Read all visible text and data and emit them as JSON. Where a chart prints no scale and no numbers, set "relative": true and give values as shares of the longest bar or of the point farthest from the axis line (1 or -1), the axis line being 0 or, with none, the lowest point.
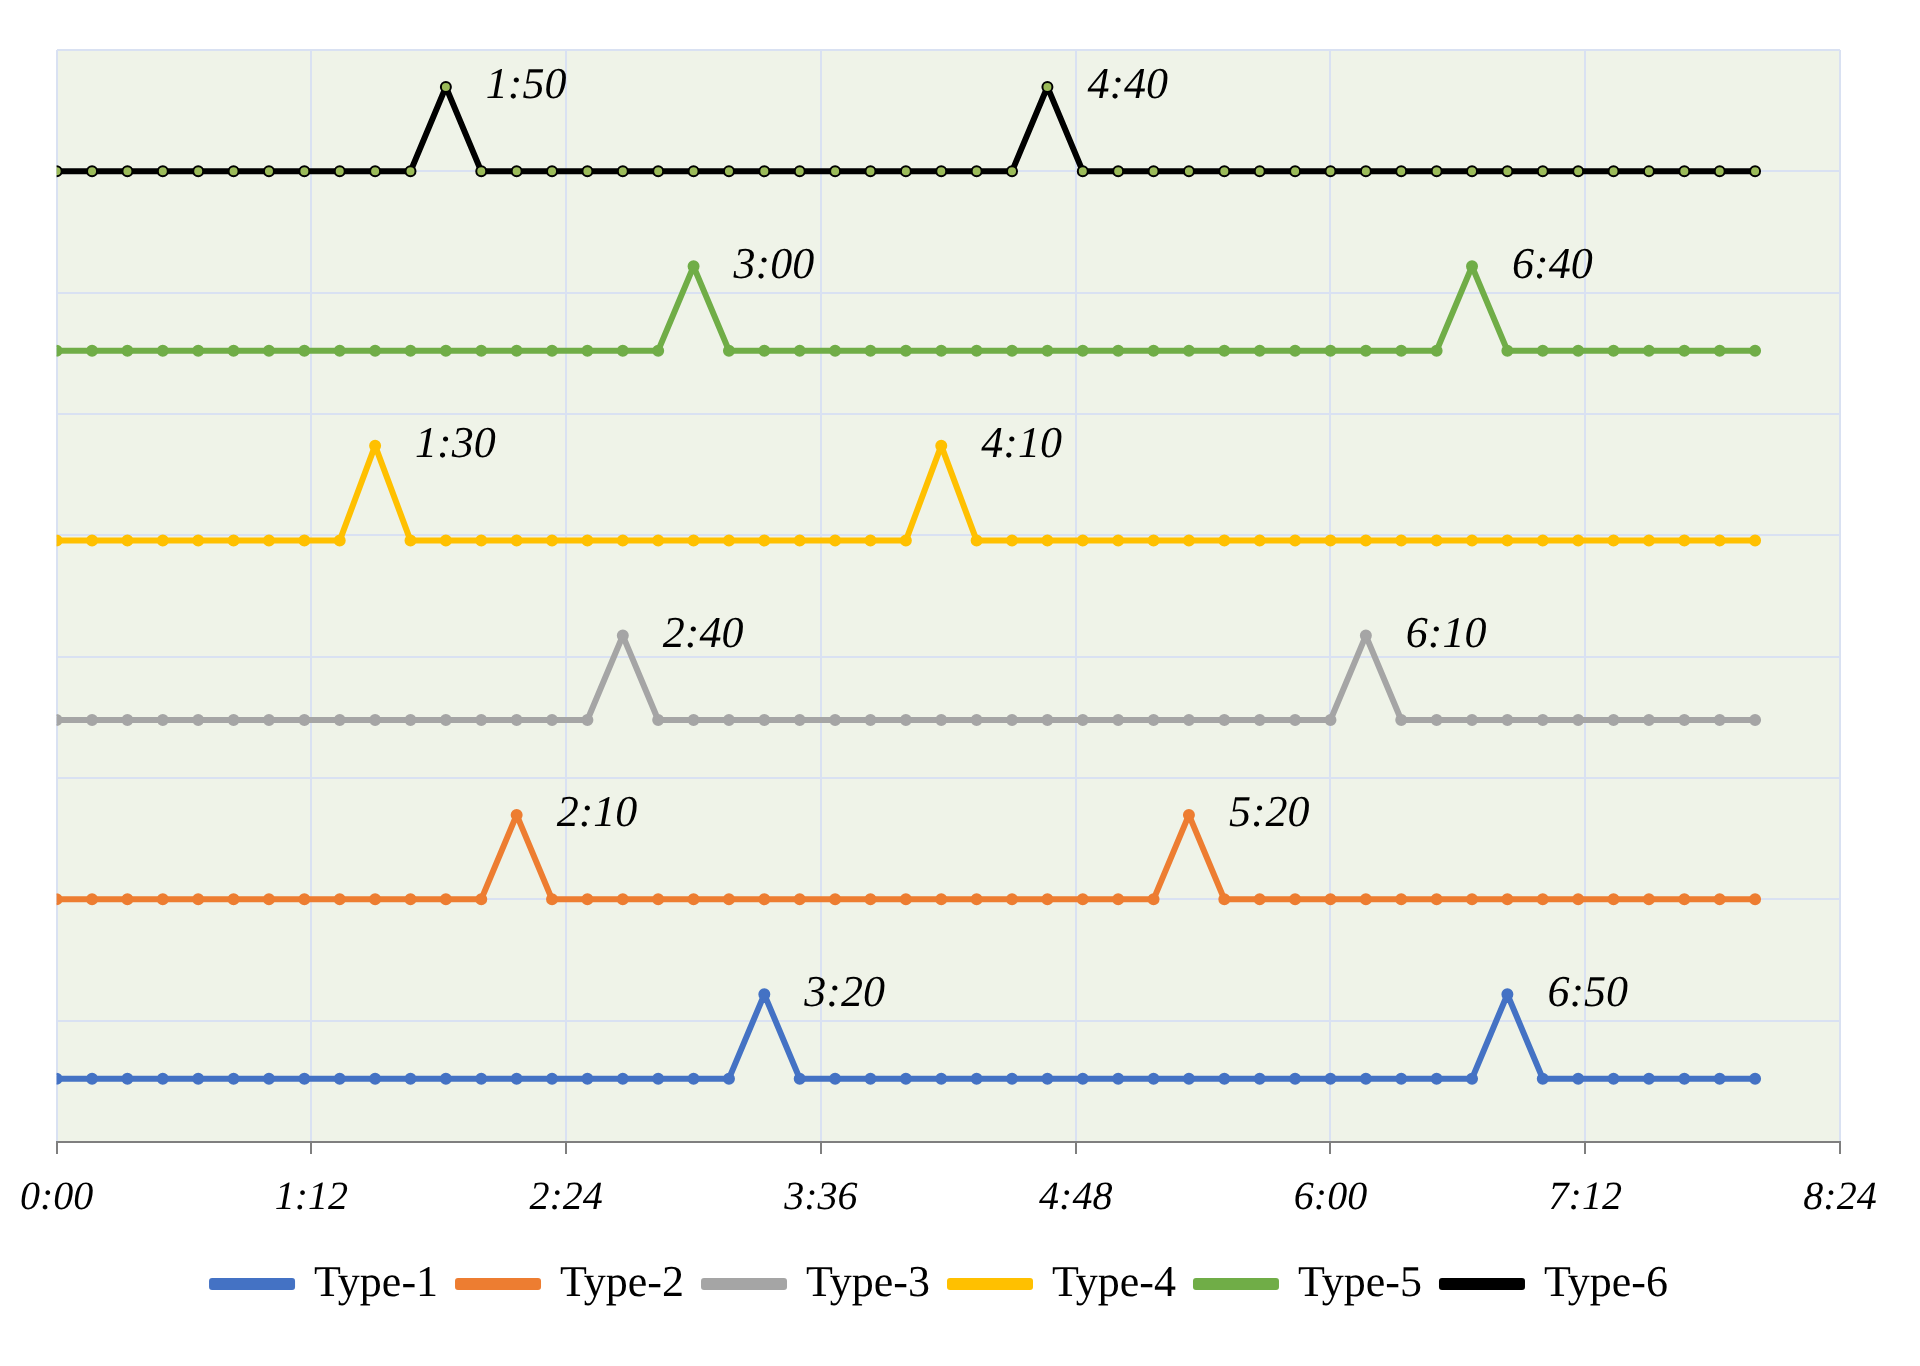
{
  "chart_data": {
    "type": "line",
    "relative": true,
    "grid": true,
    "legend": "bottom",
    "marker": "circle",
    "line_style": "solid",
    "x": [
      0,
      0.1667,
      0.3333,
      0.5,
      0.6667,
      0.8333,
      1,
      1.1667,
      1.3333,
      1.5,
      1.6667,
      1.8333,
      2,
      2.1667,
      2.3333,
      2.5,
      2.6667,
      2.8333,
      3,
      3.1667,
      3.3333,
      3.5,
      3.6667,
      3.8333,
      4,
      4.1667,
      4.3333,
      4.5,
      4.6667,
      4.8333,
      5,
      5.1667,
      5.3333,
      5.5,
      5.6667,
      5.8333,
      6,
      6.1667,
      6.3333,
      6.5,
      6.6667,
      6.8333,
      7,
      7.1667,
      7.3333,
      7.5,
      7.6667,
      7.8333,
      8
    ],
    "xlim": [
      0,
      8.4
    ],
    "xticks": [
      {
        "value": 0,
        "label": "0:00"
      },
      {
        "value": 1.2,
        "label": "1:12"
      },
      {
        "value": 2.4,
        "label": "2:24"
      },
      {
        "value": 3.6,
        "label": "3:36"
      },
      {
        "value": 4.8,
        "label": "4:48"
      },
      {
        "value": 6,
        "label": "6:00"
      },
      {
        "value": 7.2,
        "label": "7:12"
      },
      {
        "value": 8.4,
        "label": "8:24"
      }
    ],
    "series": [
      {
        "name": "Type-1",
        "color": "#4472c4",
        "values": [
          0.06,
          0.06,
          0.06,
          0.06,
          0.06,
          0.06,
          0.06,
          0.06,
          0.06,
          0.06,
          0.06,
          0.06,
          0.06,
          0.06,
          0.06,
          0.06,
          0.06,
          0.06,
          0.06,
          0.06,
          0.14,
          0.06,
          0.06,
          0.06,
          0.06,
          0.06,
          0.06,
          0.06,
          0.06,
          0.06,
          0.06,
          0.06,
          0.06,
          0.06,
          0.06,
          0.06,
          0.06,
          0.06,
          0.06,
          0.06,
          0.06,
          0.14,
          0.06,
          0.06,
          0.06,
          0.06,
          0.06,
          0.06,
          0.06
        ]
      },
      {
        "name": "Type-2",
        "color": "#ed7d31",
        "values": [
          0.23,
          0.23,
          0.23,
          0.23,
          0.23,
          0.23,
          0.23,
          0.23,
          0.23,
          0.23,
          0.23,
          0.23,
          0.23,
          0.31,
          0.23,
          0.23,
          0.23,
          0.23,
          0.23,
          0.23,
          0.23,
          0.23,
          0.23,
          0.23,
          0.23,
          0.23,
          0.23,
          0.23,
          0.23,
          0.23,
          0.23,
          0.23,
          0.31,
          0.23,
          0.23,
          0.23,
          0.23,
          0.23,
          0.23,
          0.23,
          0.23,
          0.23,
          0.23,
          0.23,
          0.23,
          0.23,
          0.23,
          0.23,
          0.23
        ]
      },
      {
        "name": "Type-3",
        "color": "#a5a5a5",
        "values": [
          0.4,
          0.4,
          0.4,
          0.4,
          0.4,
          0.4,
          0.4,
          0.4,
          0.4,
          0.4,
          0.4,
          0.4,
          0.4,
          0.4,
          0.4,
          0.4,
          0.48,
          0.4,
          0.4,
          0.4,
          0.4,
          0.4,
          0.4,
          0.4,
          0.4,
          0.4,
          0.4,
          0.4,
          0.4,
          0.4,
          0.4,
          0.4,
          0.4,
          0.4,
          0.4,
          0.4,
          0.4,
          0.48,
          0.4,
          0.4,
          0.4,
          0.4,
          0.4,
          0.4,
          0.4,
          0.4,
          0.4,
          0.4,
          0.4
        ]
      },
      {
        "name": "Type-4",
        "color": "#ffc000",
        "values": [
          0.57,
          0.57,
          0.57,
          0.57,
          0.57,
          0.57,
          0.57,
          0.57,
          0.57,
          0.66,
          0.57,
          0.57,
          0.57,
          0.57,
          0.57,
          0.57,
          0.57,
          0.57,
          0.57,
          0.57,
          0.57,
          0.57,
          0.57,
          0.57,
          0.57,
          0.66,
          0.57,
          0.57,
          0.57,
          0.57,
          0.57,
          0.57,
          0.57,
          0.57,
          0.57,
          0.57,
          0.57,
          0.57,
          0.57,
          0.57,
          0.57,
          0.57,
          0.57,
          0.57,
          0.57,
          0.57,
          0.57,
          0.57,
          0.57
        ]
      },
      {
        "name": "Type-5",
        "color": "#70ad47",
        "values": [
          0.75,
          0.75,
          0.75,
          0.75,
          0.75,
          0.75,
          0.75,
          0.75,
          0.75,
          0.75,
          0.75,
          0.75,
          0.75,
          0.75,
          0.75,
          0.75,
          0.75,
          0.75,
          0.83,
          0.75,
          0.75,
          0.75,
          0.75,
          0.75,
          0.75,
          0.75,
          0.75,
          0.75,
          0.75,
          0.75,
          0.75,
          0.75,
          0.75,
          0.75,
          0.75,
          0.75,
          0.75,
          0.75,
          0.75,
          0.75,
          0.83,
          0.75,
          0.75,
          0.75,
          0.75,
          0.75,
          0.75,
          0.75,
          0.75
        ]
      },
      {
        "name": "Type-6",
        "color": "#000000",
        "values": [
          0.92,
          0.92,
          0.92,
          0.92,
          0.92,
          0.92,
          0.92,
          0.92,
          0.92,
          0.92,
          0.92,
          1,
          0.92,
          0.92,
          0.92,
          0.92,
          0.92,
          0.92,
          0.92,
          0.92,
          0.92,
          0.92,
          0.92,
          0.92,
          0.92,
          0.92,
          0.92,
          0.92,
          1,
          0.92,
          0.92,
          0.92,
          0.92,
          0.92,
          0.92,
          0.92,
          0.92,
          0.92,
          0.92,
          0.92,
          0.92,
          0.92,
          0.92,
          0.92,
          0.92,
          0.92,
          0.92,
          0.92,
          0.92
        ]
      }
    ],
    "annotations": [
      {
        "text": "3:20",
        "x": 3.3333,
        "y": 0.14
      },
      {
        "text": "6:50",
        "x": 6.8333,
        "y": 0.14
      },
      {
        "text": "2:10",
        "x": 2.1667,
        "y": 0.31
      },
      {
        "text": "5:20",
        "x": 5.3333,
        "y": 0.31
      },
      {
        "text": "2:40",
        "x": 2.6667,
        "y": 0.48
      },
      {
        "text": "6:10",
        "x": 6.1667,
        "y": 0.48
      },
      {
        "text": "1:30",
        "x": 1.5,
        "y": 0.66
      },
      {
        "text": "4:10",
        "x": 4.1667,
        "y": 0.66
      },
      {
        "text": "3:00",
        "x": 3,
        "y": 0.83
      },
      {
        "text": "6:40",
        "x": 6.6667,
        "y": 0.83
      },
      {
        "text": "1:50",
        "x": 1.8333,
        "y": 1
      },
      {
        "text": "4:40",
        "x": 4.6667,
        "y": 1
      }
    ]
  }
}
